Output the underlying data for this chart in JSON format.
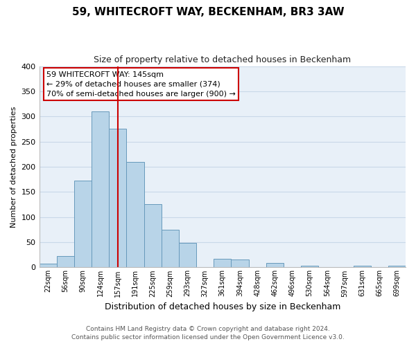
{
  "title": "59, WHITECROFT WAY, BECKENHAM, BR3 3AW",
  "subtitle": "Size of property relative to detached houses in Beckenham",
  "xlabel": "Distribution of detached houses by size in Beckenham",
  "ylabel": "Number of detached properties",
  "bin_labels": [
    "22sqm",
    "56sqm",
    "90sqm",
    "124sqm",
    "157sqm",
    "191sqm",
    "225sqm",
    "259sqm",
    "293sqm",
    "327sqm",
    "361sqm",
    "394sqm",
    "428sqm",
    "462sqm",
    "496sqm",
    "530sqm",
    "564sqm",
    "597sqm",
    "631sqm",
    "665sqm",
    "699sqm"
  ],
  "bar_values": [
    8,
    22,
    173,
    310,
    275,
    210,
    126,
    75,
    48,
    0,
    17,
    16,
    0,
    9,
    0,
    3,
    0,
    0,
    3,
    0,
    3
  ],
  "bar_color": "#b8d4e8",
  "bar_edge_color": "#6699bb",
  "vline_x": 4.0,
  "vline_color": "#cc0000",
  "annotation_title": "59 WHITECROFT WAY: 145sqm",
  "annotation_line1": "← 29% of detached houses are smaller (374)",
  "annotation_line2": "70% of semi-detached houses are larger (900) →",
  "annotation_box_color": "#ffffff",
  "annotation_box_edge": "#cc0000",
  "ylim": [
    0,
    400
  ],
  "yticks": [
    0,
    50,
    100,
    150,
    200,
    250,
    300,
    350,
    400
  ],
  "footer_line1": "Contains HM Land Registry data © Crown copyright and database right 2024.",
  "footer_line2": "Contains public sector information licensed under the Open Government Licence v3.0.",
  "background_color": "#ffffff",
  "plot_bg_color": "#e8f0f8",
  "grid_color": "#c8d8e8"
}
